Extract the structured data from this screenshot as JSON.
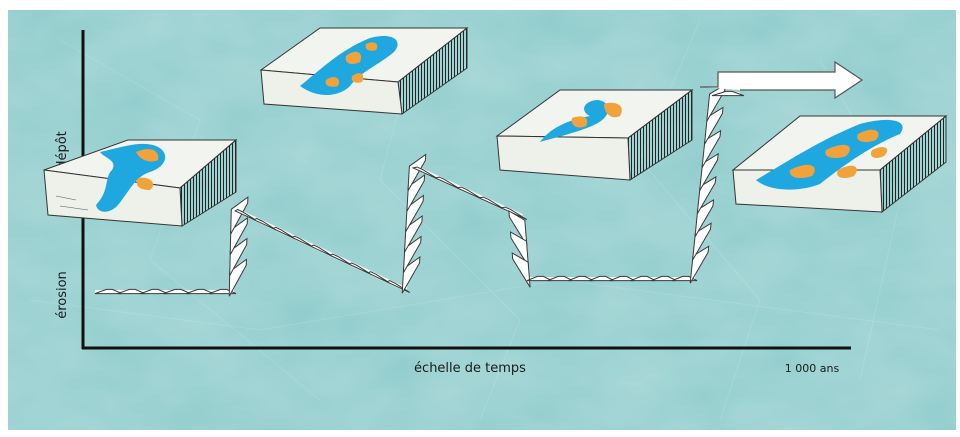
{
  "axes": {
    "y_top_label": "dépôt",
    "y_bottom_label": "érosion",
    "x_label": "échelle de temps",
    "x_scale_label": "1 000 ans"
  },
  "colors": {
    "background": "#8fcccc",
    "water": "#1fa7e0",
    "sediment": "#f2a23a",
    "ribbon": "#ffffff",
    "ink": "#111111"
  },
  "illustrations": [
    {
      "name": "river-block-1",
      "icon": "river-block-illustration"
    },
    {
      "name": "river-block-2",
      "icon": "river-block-illustration"
    },
    {
      "name": "river-block-3",
      "icon": "river-block-illustration"
    },
    {
      "name": "river-block-4",
      "icon": "river-block-illustration"
    }
  ]
}
